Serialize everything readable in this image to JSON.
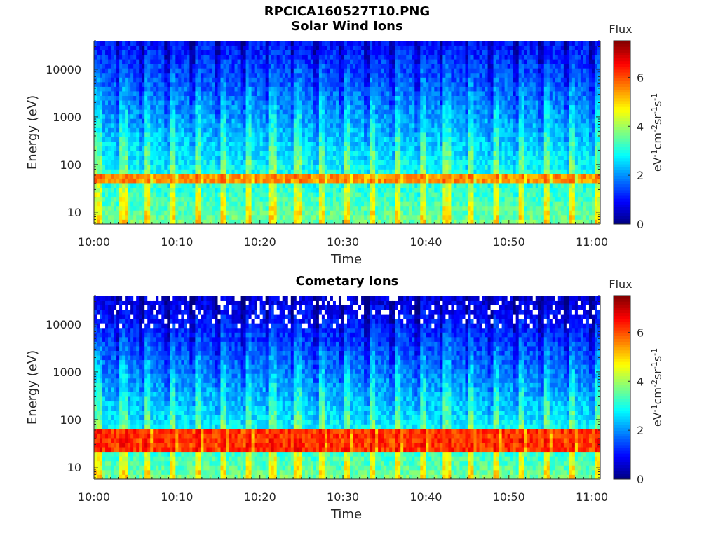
{
  "figure": {
    "filename": "RPCICA160527T10.PNG"
  },
  "chart_data": [
    {
      "type": "heatmap",
      "title": "Solar Wind Ions",
      "xlabel": "Time",
      "ylabel": "Energy (eV)",
      "yscale": "log",
      "xlim": [
        "10:00",
        "11:01"
      ],
      "ylim": [
        5.6,
        40000
      ],
      "xticks": [
        "10:00",
        "10:10",
        "10:20",
        "10:30",
        "10:40",
        "10:50",
        "11:00"
      ],
      "yticks": [
        10,
        100,
        1000,
        10000
      ],
      "yticklabels": [
        "10",
        "100",
        "1000",
        "10000"
      ],
      "colorbar": {
        "label": "Flux",
        "units": "eV-1cm-2sr-1s-1",
        "range": [
          0,
          7.5
        ],
        "ticks": [
          0,
          2,
          4,
          6
        ],
        "colormap": "jet"
      },
      "pattern": {
        "sweep_period_min": 3,
        "peak_band_eV": [
          38,
          60
        ],
        "peak_flux": 5.5,
        "high_energy_flux": 1.0
      }
    },
    {
      "type": "heatmap",
      "title": "Cometary Ions",
      "xlabel": "Time",
      "ylabel": "Energy (eV)",
      "yscale": "log",
      "xlim": [
        "10:00",
        "11:01"
      ],
      "ylim": [
        5.6,
        40000
      ],
      "xticks": [
        "10:00",
        "10:10",
        "10:20",
        "10:30",
        "10:40",
        "10:50",
        "11:00"
      ],
      "yticks": [
        10,
        100,
        1000,
        10000
      ],
      "yticklabels": [
        "10",
        "100",
        "1000",
        "10000"
      ],
      "colorbar": {
        "label": "Flux",
        "units": "eV-1cm-2sr-1s-1",
        "range": [
          0,
          7.5
        ],
        "ticks": [
          0,
          2,
          4,
          6
        ],
        "colormap": "jet"
      },
      "pattern": {
        "sweep_period_min": 3,
        "peak_band_eV": [
          18,
          60
        ],
        "peak_flux": 6.2,
        "high_energy_flux": 0.6
      }
    }
  ]
}
